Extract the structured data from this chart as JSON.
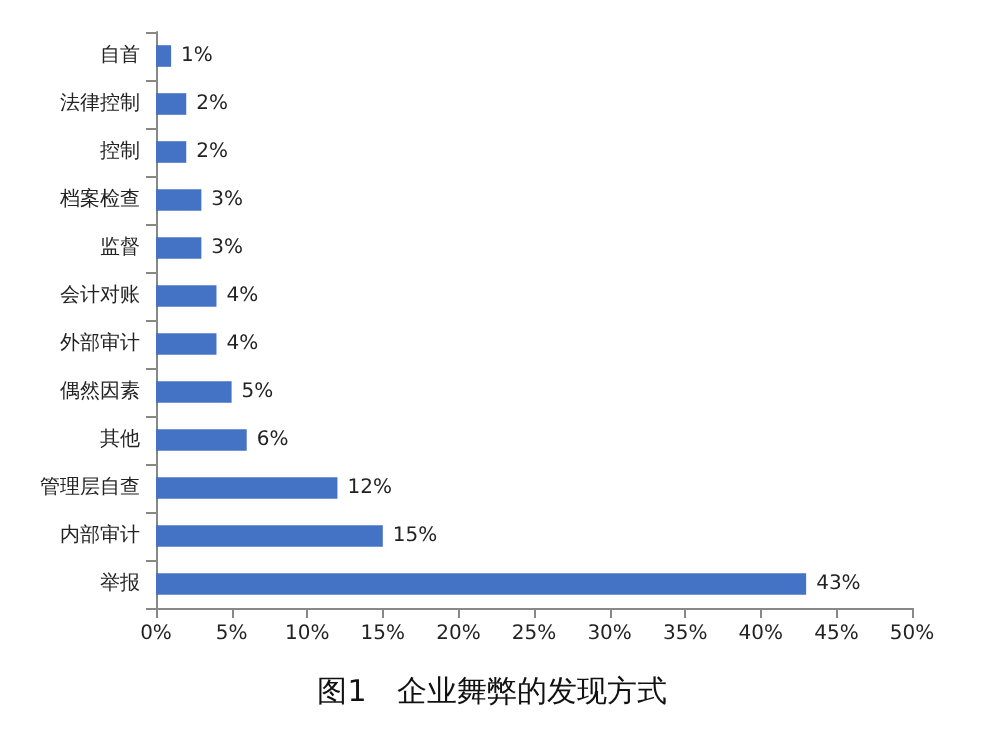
{
  "chart_data": {
    "type": "bar",
    "orientation": "horizontal",
    "title": "图1　企业舞弊的发现方式",
    "categories": [
      "自首",
      "法律控制",
      "控制",
      "档案检查",
      "监督",
      "会计对账",
      "外部审计",
      "偶然因素",
      "其他",
      "管理层自查",
      "内部审计",
      "举报"
    ],
    "values": [
      1,
      2,
      2,
      3,
      3,
      4,
      4,
      5,
      6,
      12,
      15,
      43
    ],
    "value_labels": [
      "1%",
      "2%",
      "2%",
      "3%",
      "3%",
      "4%",
      "4%",
      "5%",
      "6%",
      "12%",
      "15%",
      "43%"
    ],
    "color": "#4472c4",
    "xlim": [
      0,
      50
    ],
    "xticks": [
      {
        "value": 0,
        "label": "0%"
      },
      {
        "value": 5,
        "label": "5%"
      },
      {
        "value": 10,
        "label": "10%"
      },
      {
        "value": 15,
        "label": "15%"
      },
      {
        "value": 20,
        "label": "20%"
      },
      {
        "value": 25,
        "label": "25%"
      },
      {
        "value": 30,
        "label": "30%"
      },
      {
        "value": 35,
        "label": "35%"
      },
      {
        "value": 40,
        "label": "40%"
      },
      {
        "value": 45,
        "label": "45%"
      },
      {
        "value": 50,
        "label": "50%"
      }
    ],
    "grid": false
  }
}
